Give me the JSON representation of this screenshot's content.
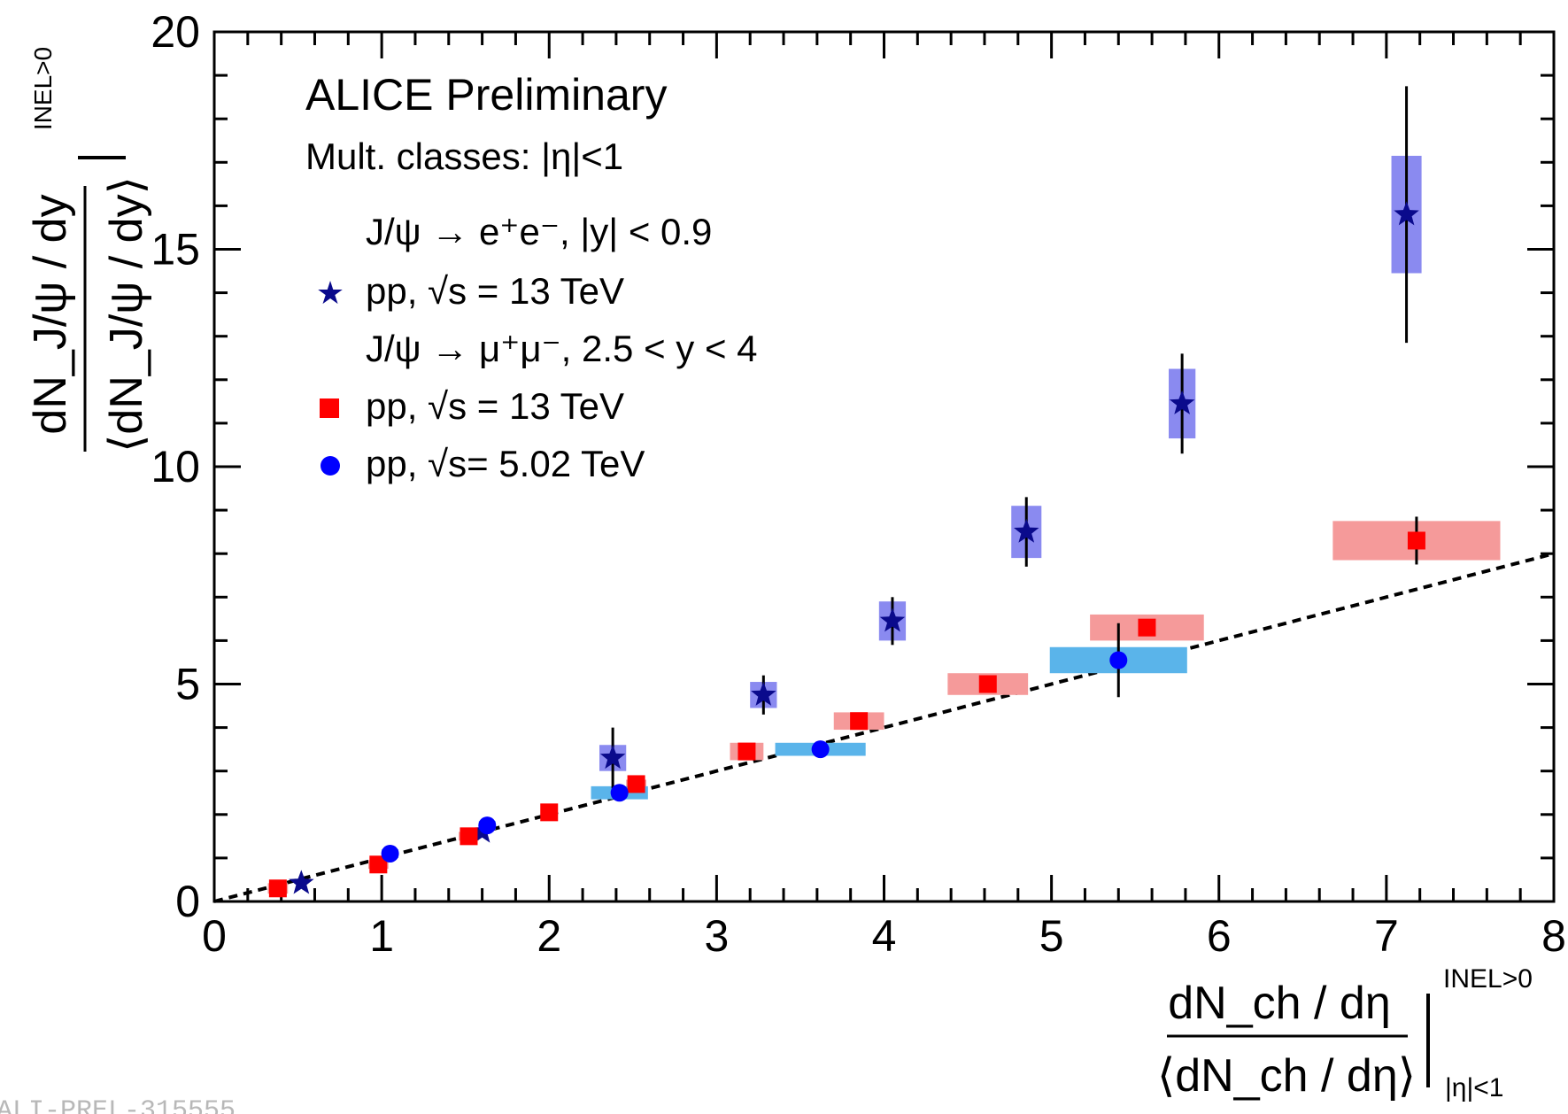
{
  "chart_data": {
    "type": "scatter",
    "annotations": {
      "title": "ALICE Preliminary",
      "subtitle": "Mult. classes: |η|<1",
      "legend_header_1": "J/ψ → e⁺e⁻, |y| < 0.9",
      "legend_header_2": "J/ψ → μ⁺μ⁻, 2.5 < y < 4",
      "figure_id": "ALI-PREL-315555"
    },
    "xlabel": {
      "numerator": "dN_ch / dη",
      "denominator": "⟨dN_ch / dη⟩",
      "superscript": "INEL>0",
      "subscript": "|η|<1"
    },
    "ylabel": {
      "numerator": "dN_J/ψ / dy",
      "denominator": "⟨dN_J/ψ / dy⟩",
      "superscript": "INEL>0"
    },
    "xlim": [
      0,
      8
    ],
    "ylim": [
      0,
      20
    ],
    "x_ticks": [
      "0",
      "1",
      "2",
      "3",
      "4",
      "5",
      "6",
      "7",
      "8"
    ],
    "y_ticks": [
      "0",
      "5",
      "10",
      "15",
      "20"
    ],
    "legend_position": "top-left",
    "reference_line": {
      "style": "dashed",
      "x": [
        0,
        8
      ],
      "y": [
        0,
        8
      ]
    },
    "series": [
      {
        "name": "pp, √s = 13 TeV",
        "group": "J/ψ → e⁺e⁻, |y| < 0.9",
        "marker": "star",
        "color": "#0a0a8c",
        "box_color": "#8a8af0",
        "points": [
          {
            "x": 0.52,
            "y": 0.42,
            "stat": 0.05,
            "sys_x": 0.03,
            "sys_y": 0.05
          },
          {
            "x": 1.6,
            "y": 1.6,
            "stat": 0.1,
            "sys_x": 0.03,
            "sys_y": 0.1
          },
          {
            "x": 2.38,
            "y": 3.3,
            "stat": 0.7,
            "sys_x": 0.08,
            "sys_y": 0.3
          },
          {
            "x": 3.28,
            "y": 4.75,
            "stat": 0.45,
            "sys_x": 0.08,
            "sys_y": 0.3
          },
          {
            "x": 4.05,
            "y": 6.45,
            "stat": 0.55,
            "sys_x": 0.08,
            "sys_y": 0.45
          },
          {
            "x": 4.85,
            "y": 8.5,
            "stat": 0.8,
            "sys_x": 0.09,
            "sys_y": 0.6
          },
          {
            "x": 5.78,
            "y": 11.45,
            "stat": 1.15,
            "sys_x": 0.08,
            "sys_y": 0.8
          },
          {
            "x": 7.12,
            "y": 15.8,
            "stat": 2.95,
            "sys_x": 0.09,
            "sys_y": 1.35
          }
        ]
      },
      {
        "name": "pp, √s = 13 TeV",
        "group": "J/ψ → μ⁺μ⁻, 2.5 < y < 4",
        "marker": "square",
        "color": "#ff0000",
        "box_color": "#f59a9a",
        "points": [
          {
            "x": 0.38,
            "y": 0.3,
            "stat": 0.05,
            "sys_x": 0.06,
            "sys_y": 0.12
          },
          {
            "x": 0.98,
            "y": 0.85,
            "stat": 0.15,
            "sys_x": 0.06,
            "sys_y": 0.1
          },
          {
            "x": 1.52,
            "y": 1.5,
            "stat": 0.05,
            "sys_x": 0.06,
            "sys_y": 0.1
          },
          {
            "x": 2.0,
            "y": 2.05,
            "stat": 0.05,
            "sys_x": 0.05,
            "sys_y": 0.1
          },
          {
            "x": 2.52,
            "y": 2.7,
            "stat": 0.05,
            "sys_x": 0.06,
            "sys_y": 0.1
          },
          {
            "x": 3.18,
            "y": 3.45,
            "stat": 0.1,
            "sys_x": 0.1,
            "sys_y": 0.2
          },
          {
            "x": 3.85,
            "y": 4.15,
            "stat": 0.1,
            "sys_x": 0.15,
            "sys_y": 0.2
          },
          {
            "x": 4.62,
            "y": 5.0,
            "stat": 0.1,
            "sys_x": 0.24,
            "sys_y": 0.25
          },
          {
            "x": 5.57,
            "y": 6.3,
            "stat": 0.15,
            "sys_x": 0.34,
            "sys_y": 0.3
          },
          {
            "x": 7.18,
            "y": 8.3,
            "stat": 0.55,
            "sys_x": 0.5,
            "sys_y": 0.45
          }
        ]
      },
      {
        "name": "pp, √s= 5.02 TeV",
        "group": "J/ψ → μ⁺μ⁻, 2.5 < y < 4",
        "marker": "circle",
        "color": "#0000ff",
        "box_color": "#5ab4ea",
        "points": [
          {
            "x": 1.05,
            "y": 1.1,
            "stat": 0.05,
            "sys_x": 0.05,
            "sys_y": 0.1
          },
          {
            "x": 1.63,
            "y": 1.75,
            "stat": 0.05,
            "sys_x": 0.05,
            "sys_y": 0.1
          },
          {
            "x": 2.42,
            "y": 2.5,
            "stat": 0.05,
            "sys_x": 0.17,
            "sys_y": 0.15
          },
          {
            "x": 3.62,
            "y": 3.5,
            "stat": 0.05,
            "sys_x": 0.27,
            "sys_y": 0.15
          },
          {
            "x": 5.4,
            "y": 5.55,
            "stat": 0.85,
            "sys_x": 0.41,
            "sys_y": 0.3
          }
        ]
      }
    ]
  }
}
